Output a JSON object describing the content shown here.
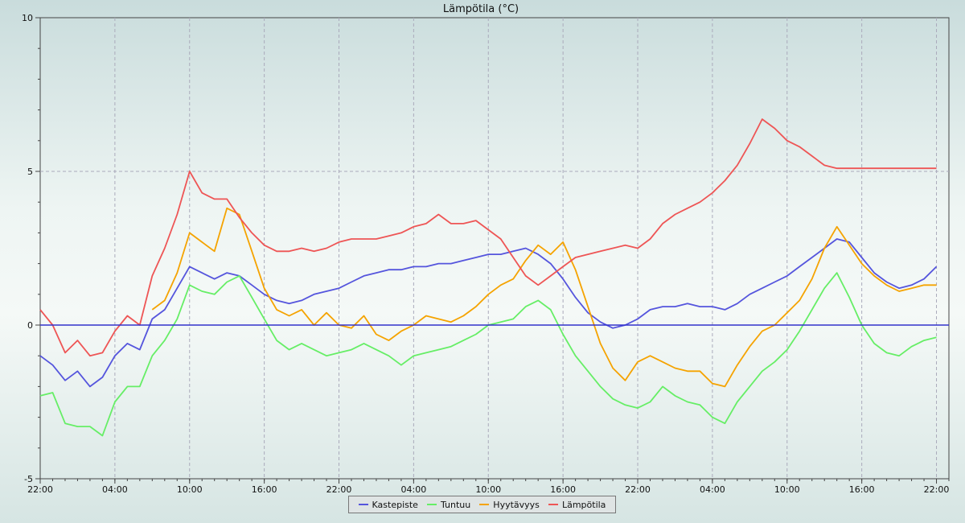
{
  "chart_data": {
    "type": "line",
    "title": "Lämpötila (°C)",
    "xlabel": "",
    "ylabel": "",
    "ylim": [
      -5,
      10
    ],
    "yticks": [
      -5,
      0,
      5,
      10
    ],
    "x_ticks": [
      "22:00",
      "04:00",
      "10:00",
      "16:00",
      "22:00",
      "04:00",
      "10:00",
      "16:00",
      "22:00",
      "04:00",
      "10:00",
      "16:00",
      "22:00"
    ],
    "x_tick_hours": [
      0,
      6,
      12,
      18,
      24,
      30,
      36,
      42,
      48,
      54,
      60,
      66,
      72
    ],
    "x_range_hours": [
      0,
      73
    ],
    "grid": true,
    "legend_position": "bottom",
    "x_hours": [
      0,
      1,
      2,
      3,
      4,
      5,
      6,
      7,
      8,
      9,
      10,
      11,
      12,
      13,
      14,
      15,
      16,
      17,
      18,
      19,
      20,
      21,
      22,
      23,
      24,
      25,
      26,
      27,
      28,
      29,
      30,
      31,
      32,
      33,
      34,
      35,
      36,
      37,
      38,
      39,
      40,
      41,
      42,
      43,
      44,
      45,
      46,
      47,
      48,
      49,
      50,
      51,
      52,
      53,
      54,
      55,
      56,
      57,
      58,
      59,
      60,
      61,
      62,
      63,
      64,
      65,
      66,
      67,
      68,
      69,
      70,
      71,
      72
    ],
    "series": [
      {
        "name": "Kastepiste",
        "color": "#5555dd",
        "values": [
          -1.0,
          -1.3,
          -1.8,
          -1.5,
          -2.0,
          -1.7,
          -1.0,
          -0.6,
          -0.8,
          0.2,
          0.5,
          1.2,
          1.9,
          1.7,
          1.5,
          1.7,
          1.6,
          1.3,
          1.0,
          0.8,
          0.7,
          0.8,
          1.0,
          1.1,
          1.2,
          1.4,
          1.6,
          1.7,
          1.8,
          1.8,
          1.9,
          1.9,
          2.0,
          2.0,
          2.1,
          2.2,
          2.3,
          2.3,
          2.4,
          2.5,
          2.3,
          2.0,
          1.5,
          0.9,
          0.4,
          0.1,
          -0.1,
          0.0,
          0.2,
          0.5,
          0.6,
          0.6,
          0.7,
          0.6,
          0.6,
          0.5,
          0.7,
          1.0,
          1.2,
          1.4,
          1.6,
          1.9,
          2.2,
          2.5,
          2.8,
          2.7,
          2.2,
          1.7,
          1.4,
          1.2,
          1.3,
          1.5,
          1.9
        ]
      },
      {
        "name": "Tuntuu",
        "color": "#66ee66",
        "values": [
          -2.3,
          -2.2,
          -3.2,
          -3.3,
          -3.3,
          -3.6,
          -2.5,
          -2.0,
          -2.0,
          -1.0,
          -0.5,
          0.2,
          1.3,
          1.1,
          1.0,
          1.4,
          1.6,
          0.9,
          0.2,
          -0.5,
          -0.8,
          -0.6,
          -0.8,
          -1.0,
          -0.9,
          -0.8,
          -0.6,
          -0.8,
          -1.0,
          -1.3,
          -1.0,
          -0.9,
          -0.8,
          -0.7,
          -0.5,
          -0.3,
          0.0,
          0.1,
          0.2,
          0.6,
          0.8,
          0.5,
          -0.3,
          -1.0,
          -1.5,
          -2.0,
          -2.4,
          -2.6,
          -2.7,
          -2.5,
          -2.0,
          -2.3,
          -2.5,
          -2.6,
          -3.0,
          -3.2,
          -2.5,
          -2.0,
          -1.5,
          -1.2,
          -0.8,
          -0.2,
          0.5,
          1.2,
          1.7,
          0.9,
          0.0,
          -0.6,
          -0.9,
          -1.0,
          -0.7,
          -0.5,
          -0.4
        ]
      },
      {
        "name": "Hyytävyys",
        "color": "#f5a300",
        "values": [
          null,
          null,
          null,
          null,
          null,
          null,
          null,
          null,
          null,
          0.5,
          0.8,
          1.7,
          3.0,
          2.7,
          2.4,
          3.8,
          3.6,
          2.4,
          1.2,
          0.5,
          0.3,
          0.5,
          0.0,
          0.4,
          0.0,
          -0.1,
          0.3,
          -0.3,
          -0.5,
          -0.2,
          0.0,
          0.3,
          0.2,
          0.1,
          0.3,
          0.6,
          1.0,
          1.3,
          1.5,
          2.1,
          2.6,
          2.3,
          2.7,
          1.8,
          0.6,
          -0.6,
          -1.4,
          -1.8,
          -1.2,
          -1.0,
          -1.2,
          -1.4,
          -1.5,
          -1.5,
          -1.9,
          -2.0,
          -1.3,
          -0.7,
          -0.2,
          0.0,
          0.4,
          0.8,
          1.5,
          2.5,
          3.2,
          2.6,
          2.0,
          1.6,
          1.3,
          1.1,
          1.2,
          1.3,
          1.3
        ]
      },
      {
        "name": "Lämpötila",
        "color": "#ee5555",
        "values": [
          0.5,
          0.0,
          -0.9,
          -0.5,
          -1.0,
          -0.9,
          -0.2,
          0.3,
          0.0,
          1.6,
          2.5,
          3.6,
          5.0,
          4.3,
          4.1,
          4.1,
          3.5,
          3.0,
          2.6,
          2.4,
          2.4,
          2.5,
          2.4,
          2.5,
          2.7,
          2.8,
          2.8,
          2.8,
          2.9,
          3.0,
          3.2,
          3.3,
          3.6,
          3.3,
          3.3,
          3.4,
          3.1,
          2.8,
          2.2,
          1.6,
          1.3,
          1.6,
          1.9,
          2.2,
          2.3,
          2.4,
          2.5,
          2.6,
          2.5,
          2.8,
          3.3,
          3.6,
          3.8,
          4.0,
          4.3,
          4.7,
          5.2,
          5.9,
          6.7,
          6.4,
          6.0,
          5.8,
          5.5,
          5.2,
          5.1,
          5.1,
          5.1,
          5.1,
          5.1,
          5.1,
          5.1,
          5.1,
          5.1
        ]
      }
    ]
  }
}
